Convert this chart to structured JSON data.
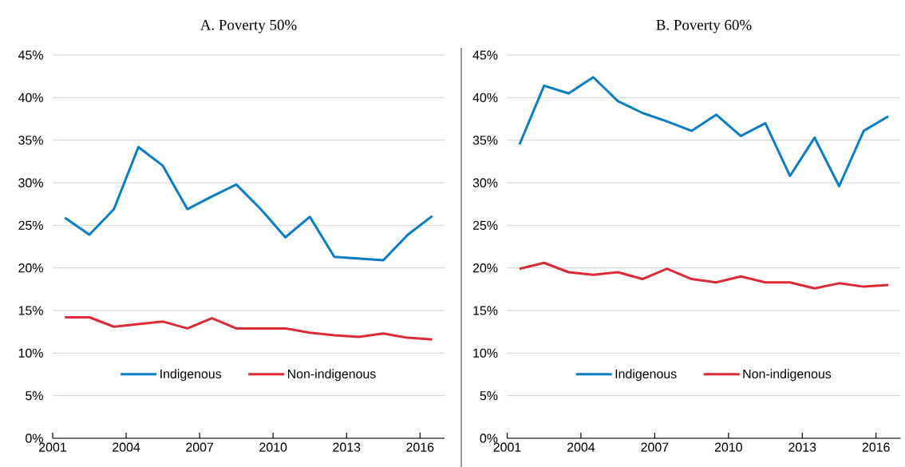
{
  "chart_data": [
    {
      "type": "line",
      "title": "A. Poverty 50%",
      "x": [
        2001.5,
        2002.5,
        2003.5,
        2004.5,
        2005.5,
        2006.5,
        2007.5,
        2008.5,
        2009.5,
        2010.5,
        2011.5,
        2012.5,
        2013.5,
        2014.5,
        2015.5,
        2016.5
      ],
      "series": [
        {
          "name": "Indigenous",
          "color": "#0b7dc4",
          "values": [
            25.9,
            23.9,
            26.9,
            34.2,
            32.0,
            26.9,
            28.4,
            29.8,
            26.9,
            23.6,
            26.0,
            21.3,
            21.1,
            20.9,
            23.9,
            26.1
          ]
        },
        {
          "name": "Non-indigenous",
          "color": "#dc2a36",
          "values": [
            14.2,
            14.2,
            13.1,
            13.4,
            13.7,
            12.9,
            14.1,
            12.9,
            12.9,
            12.9,
            12.4,
            12.1,
            11.9,
            12.3,
            11.8,
            11.6
          ]
        }
      ],
      "xlim": [
        2001,
        2017
      ],
      "xticks": [
        2001,
        2004,
        2007,
        2010,
        2013,
        2016
      ],
      "ylim": [
        0,
        45
      ],
      "yticks": [
        {
          "value": 0,
          "label": "0%"
        },
        {
          "value": 5,
          "label": "5%"
        },
        {
          "value": 10,
          "label": "10%"
        },
        {
          "value": 15,
          "label": "15%"
        },
        {
          "value": 20,
          "label": "20%"
        },
        {
          "value": 25,
          "label": "25%"
        },
        {
          "value": 30,
          "label": "30%"
        },
        {
          "value": 35,
          "label": "35%"
        },
        {
          "value": 40,
          "label": "40%"
        },
        {
          "value": 45,
          "label": "45%"
        }
      ],
      "grid": "y",
      "legend": "bottom"
    },
    {
      "type": "line",
      "title": "B. Poverty 60%",
      "x": [
        2001.5,
        2002.5,
        2003.5,
        2004.5,
        2005.5,
        2006.5,
        2007.5,
        2008.5,
        2009.5,
        2010.5,
        2011.5,
        2012.5,
        2013.5,
        2014.5,
        2015.5,
        2016.5
      ],
      "series": [
        {
          "name": "Indigenous",
          "color": "#0b7dc4",
          "values": [
            34.5,
            41.4,
            40.5,
            42.4,
            39.6,
            38.2,
            37.2,
            36.1,
            38.0,
            35.5,
            37.0,
            30.8,
            35.3,
            29.6,
            36.1,
            37.8
          ]
        },
        {
          "name": "Non-indigenous",
          "color": "#dc2a36",
          "values": [
            19.9,
            20.6,
            19.5,
            19.2,
            19.5,
            18.7,
            19.9,
            18.7,
            18.3,
            19.0,
            18.3,
            18.3,
            17.6,
            18.2,
            17.8,
            18.0
          ]
        }
      ],
      "xlim": [
        2001,
        2017
      ],
      "xticks": [
        2001,
        2004,
        2007,
        2010,
        2013,
        2016
      ],
      "ylim": [
        0,
        45
      ],
      "yticks": [
        {
          "value": 0,
          "label": "0%"
        },
        {
          "value": 5,
          "label": "5%"
        },
        {
          "value": 10,
          "label": "10%"
        },
        {
          "value": 15,
          "label": "15%"
        },
        {
          "value": 20,
          "label": "20%"
        },
        {
          "value": 25,
          "label": "25%"
        },
        {
          "value": 30,
          "label": "30%"
        },
        {
          "value": 35,
          "label": "35%"
        },
        {
          "value": 40,
          "label": "40%"
        },
        {
          "value": 45,
          "label": "45%"
        }
      ],
      "grid": "y",
      "legend": "bottom"
    }
  ]
}
